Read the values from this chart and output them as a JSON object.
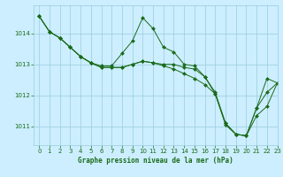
{
  "title": "Graphe pression niveau de la mer (hPa)",
  "bg_color": "#cceeff",
  "grid_color": "#99ccdd",
  "line_color": "#1a6b1a",
  "marker_color": "#1a6b1a",
  "xlim": [
    -0.5,
    23
  ],
  "ylim": [
    1010.4,
    1014.9
  ],
  "yticks": [
    1011,
    1012,
    1013,
    1014
  ],
  "xticks": [
    0,
    1,
    2,
    3,
    4,
    5,
    6,
    7,
    8,
    9,
    10,
    11,
    12,
    13,
    14,
    15,
    16,
    17,
    18,
    19,
    20,
    21,
    22,
    23
  ],
  "series": [
    [
      1014.55,
      1014.05,
      1013.85,
      1013.55,
      1013.25,
      1013.05,
      1012.95,
      1012.95,
      1013.35,
      1013.75,
      1014.5,
      1014.15,
      1013.55,
      1013.4,
      1013.0,
      1012.95,
      1012.6,
      1012.05,
      1011.05,
      1010.75,
      1010.7,
      1011.6,
      1012.55,
      1012.4
    ],
    [
      1014.55,
      1014.05,
      1013.85,
      1013.55,
      1013.25,
      1013.05,
      1012.9,
      1012.9,
      1012.9,
      1013.0,
      1013.1,
      1013.05,
      1013.0,
      1013.0,
      1012.9,
      1012.85,
      1012.6,
      1012.1,
      1011.1,
      1010.75,
      1010.7,
      1011.6,
      1012.1,
      1012.4
    ],
    [
      1014.55,
      1014.05,
      1013.85,
      1013.55,
      1013.25,
      1013.05,
      1012.9,
      1012.9,
      1012.9,
      1013.0,
      1013.1,
      1013.05,
      1012.95,
      1012.85,
      1012.7,
      1012.55,
      1012.35,
      1012.05,
      1011.1,
      1010.75,
      1010.7,
      1011.35,
      1011.65,
      1012.4
    ]
  ]
}
